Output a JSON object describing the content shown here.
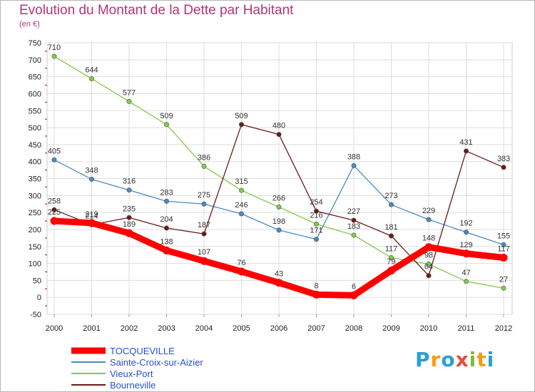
{
  "title": "Evolution du Montant de la Dette par Habitant",
  "subtitle": "(en €)",
  "brand": {
    "text": "Proxiti",
    "letter_colors": [
      "#2a9fd6",
      "#f39c12",
      "#2a9fd6",
      "#e74c3c",
      "#7cbb3a",
      "#f39c12",
      "#2a9fd6"
    ]
  },
  "chart_data": {
    "type": "line",
    "x": [
      "2000",
      "2001",
      "2002",
      "2003",
      "2004",
      "2005",
      "2006",
      "2007",
      "2008",
      "2009",
      "2010",
      "2011",
      "2012"
    ],
    "ylim": [
      -50,
      750
    ],
    "yticks": [
      -50,
      0,
      50,
      100,
      150,
      200,
      250,
      300,
      350,
      400,
      450,
      500,
      550,
      600,
      650,
      700,
      750
    ],
    "grid": true,
    "legend": "bottom-left",
    "series": [
      {
        "name": "TOCQUEVILLE",
        "color": "#ff0000",
        "values": [
          225,
          219,
          189,
          138,
          107,
          76,
          43,
          8,
          6,
          79,
          148,
          129,
          117
        ],
        "labels": [
          "225",
          "219",
          "189",
          "138",
          "107",
          "76",
          "43",
          "8",
          "6",
          "79",
          "148",
          "129",
          "117"
        ]
      },
      {
        "name": "Sainte-Croix-sur-Aizier",
        "color": "#4a8ac4",
        "values": [
          405,
          348,
          316,
          283,
          275,
          246,
          198,
          171,
          388,
          273,
          229,
          192,
          155
        ],
        "labels": [
          "405",
          "348",
          "316",
          "283",
          "275",
          "246",
          "198",
          "171",
          "388",
          "273",
          "229",
          "192",
          "155"
        ]
      },
      {
        "name": "Vieux-Port",
        "color": "#84c94c",
        "values": [
          710,
          644,
          577,
          509,
          386,
          315,
          266,
          216,
          183,
          117,
          98,
          47,
          27
        ],
        "labels": [
          "710",
          "644",
          "577",
          "509",
          "386",
          "315",
          "266",
          "216",
          "183",
          "117",
          "98",
          "47",
          "27"
        ]
      },
      {
        "name": "Bourneville",
        "color": "#6b1a1a",
        "values": [
          258,
          214,
          235,
          204,
          187,
          509,
          480,
          254,
          227,
          181,
          64,
          431,
          383
        ],
        "labels": [
          "258",
          "214",
          "235",
          "204",
          "187",
          "509",
          "480",
          "254",
          "227",
          "181",
          "64",
          "431",
          "383"
        ]
      }
    ]
  }
}
